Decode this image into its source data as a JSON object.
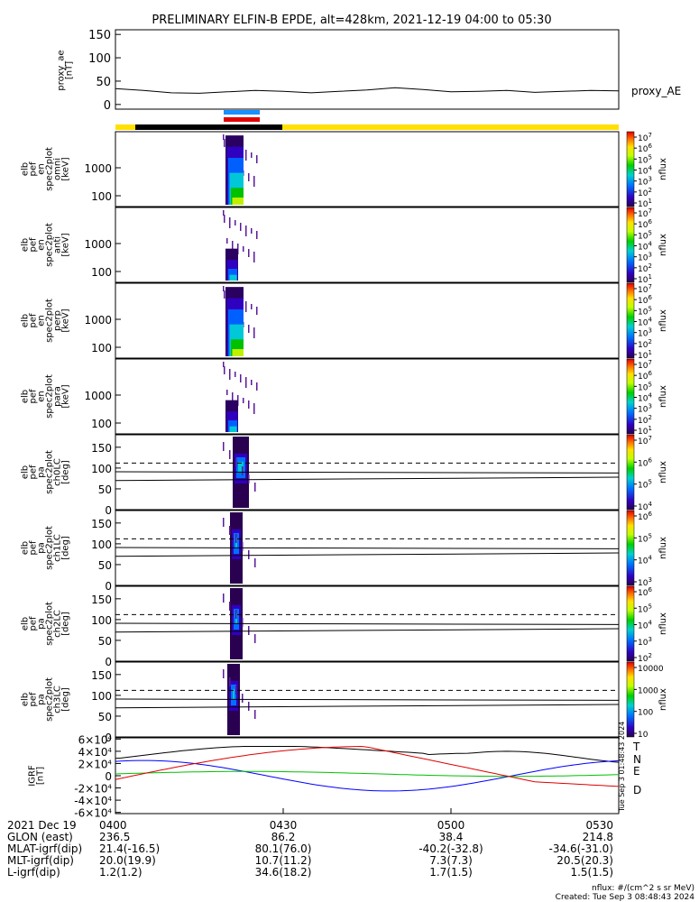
{
  "title": "PRELIMINARY ELFIN-B EPDE, alt=428km, 2021-12-19 04:00 to 05:30",
  "chart_data": [
    {
      "type": "line",
      "name": "proxy_ae",
      "ylabel": "proxy_ae [nT]",
      "ylim": [
        -10,
        160
      ],
      "yticks": [
        0,
        50,
        100,
        150
      ],
      "series": [
        {
          "name": "proxy_AE",
          "x_min": [
            0,
            5,
            10,
            15,
            20,
            25,
            30,
            35,
            40,
            45,
            50,
            55,
            60,
            65,
            70,
            75,
            80,
            85,
            90
          ],
          "values": [
            34,
            30,
            25,
            24,
            27,
            30,
            28,
            25,
            28,
            31,
            36,
            32,
            27,
            28,
            30,
            26,
            28,
            30,
            29
          ]
        }
      ]
    },
    {
      "type": "heatmap",
      "name": "elb_pef_en_spec2plot_omni",
      "ylabel": "elb pef en spec2plot omni [keV]",
      "yscale": "log",
      "yticks": [
        100,
        1000
      ],
      "colorbar_label": "nflux",
      "colorbar_ticks": [
        "10^7",
        "10^6",
        "10^5",
        "10^4",
        "10^3",
        "10^2",
        "10^1"
      ]
    },
    {
      "type": "heatmap",
      "name": "elb_pef_en_spec2plot_anti",
      "ylabel": "elb pef en spec2plot anti [keV]",
      "yscale": "log",
      "yticks": [
        100,
        1000
      ],
      "colorbar_label": "nflux",
      "colorbar_ticks": [
        "10^7",
        "10^6",
        "10^5",
        "10^4",
        "10^3",
        "10^2",
        "10^1"
      ]
    },
    {
      "type": "heatmap",
      "name": "elb_pef_en_spec2plot_perp",
      "ylabel": "elb pef en spec2plot perp [keV]",
      "yscale": "log",
      "yticks": [
        100,
        1000
      ],
      "colorbar_label": "nflux",
      "colorbar_ticks": [
        "10^7",
        "10^6",
        "10^5",
        "10^4",
        "10^3",
        "10^2",
        "10^1"
      ]
    },
    {
      "type": "heatmap",
      "name": "elb_pef_en_spec2plot_para",
      "ylabel": "elb pef en spec2plot para [keV]",
      "yscale": "log",
      "yticks": [
        100,
        1000
      ],
      "colorbar_label": "nflux",
      "colorbar_ticks": [
        "10^7",
        "10^6",
        "10^5",
        "10^4",
        "10^3",
        "10^2",
        "10^1"
      ]
    },
    {
      "type": "heatmap",
      "name": "elb_pef_pa_spec2plot_ch0LC",
      "ylabel": "elb pef pa spec2plot ch0LC [deg]",
      "ylim": [
        0,
        180
      ],
      "yticks": [
        0,
        50,
        100,
        150
      ],
      "colorbar_label": "nflux",
      "colorbar_ticks": [
        "10^7",
        "10^6",
        "10^5",
        "10^4"
      ]
    },
    {
      "type": "heatmap",
      "name": "elb_pef_pa_spec2plot_ch1LC",
      "ylabel": "elb pef pa spec2plot ch1LC [deg]",
      "ylim": [
        0,
        180
      ],
      "yticks": [
        0,
        50,
        100,
        150
      ],
      "colorbar_label": "nflux",
      "colorbar_ticks": [
        "10^6",
        "10^5",
        "10^4",
        "10^3"
      ]
    },
    {
      "type": "heatmap",
      "name": "elb_pef_pa_spec2plot_ch2LC",
      "ylabel": "elb pef pa spec2plot ch2LC [deg]",
      "ylim": [
        0,
        180
      ],
      "yticks": [
        0,
        50,
        100,
        150
      ],
      "colorbar_label": "nflux",
      "colorbar_ticks": [
        "10^6",
        "10^5",
        "10^4",
        "10^3",
        "10^2"
      ]
    },
    {
      "type": "heatmap",
      "name": "elb_pef_pa_spec2plot_ch3LC",
      "ylabel": "elb pef pa spec2plot ch3LC [deg]",
      "ylim": [
        0,
        180
      ],
      "yticks": [
        0,
        50,
        100,
        150
      ],
      "colorbar_label": "nflux",
      "colorbar_ticks": [
        "10000",
        "1000",
        "100",
        "10"
      ]
    },
    {
      "type": "line",
      "name": "IGRF",
      "ylabel": "IGRF [nT]",
      "ylim": [
        -62000,
        62000
      ],
      "yticks": [
        "6×10^4",
        "4×10^4",
        "2×10^4",
        "0",
        "-2×10^4",
        "-4×10^4",
        "-6×10^4"
      ],
      "series": [
        {
          "name": "T",
          "color": "#000000"
        },
        {
          "name": "N",
          "color": "#0000ff"
        },
        {
          "name": "E",
          "color": "#00c000"
        },
        {
          "name": "D",
          "color": "#e00000"
        }
      ]
    }
  ],
  "footer": {
    "rows": [
      {
        "label": "2021 Dec 19",
        "values": [
          "0400",
          "0430",
          "0500",
          "0530"
        ]
      },
      {
        "label": "GLON (east)",
        "values": [
          "236.5",
          "86.2",
          "38.4",
          "214.8"
        ]
      },
      {
        "label": "MLAT-igrf(dip)",
        "values": [
          "21.4(-16.5)",
          "80.1(76.0)",
          "-40.2(-32.8)",
          "-34.6(-31.0)"
        ]
      },
      {
        "label": "MLT-igrf(dip)",
        "values": [
          "20.0(19.9)",
          "10.7(11.2)",
          "7.3(7.3)",
          "20.5(20.3)"
        ]
      },
      {
        "label": "L-igrf(dip)",
        "values": [
          "1.2(1.2)",
          "34.6(18.2)",
          "1.7(1.5)",
          "1.5(1.5)"
        ]
      }
    ],
    "units_note": "nflux: #/(cm^2 s sr MeV)",
    "created": "Created: Tue Sep  3 08:48:43 2024",
    "side_stamp": "Tue Sep  3 01:48:43 2024"
  }
}
